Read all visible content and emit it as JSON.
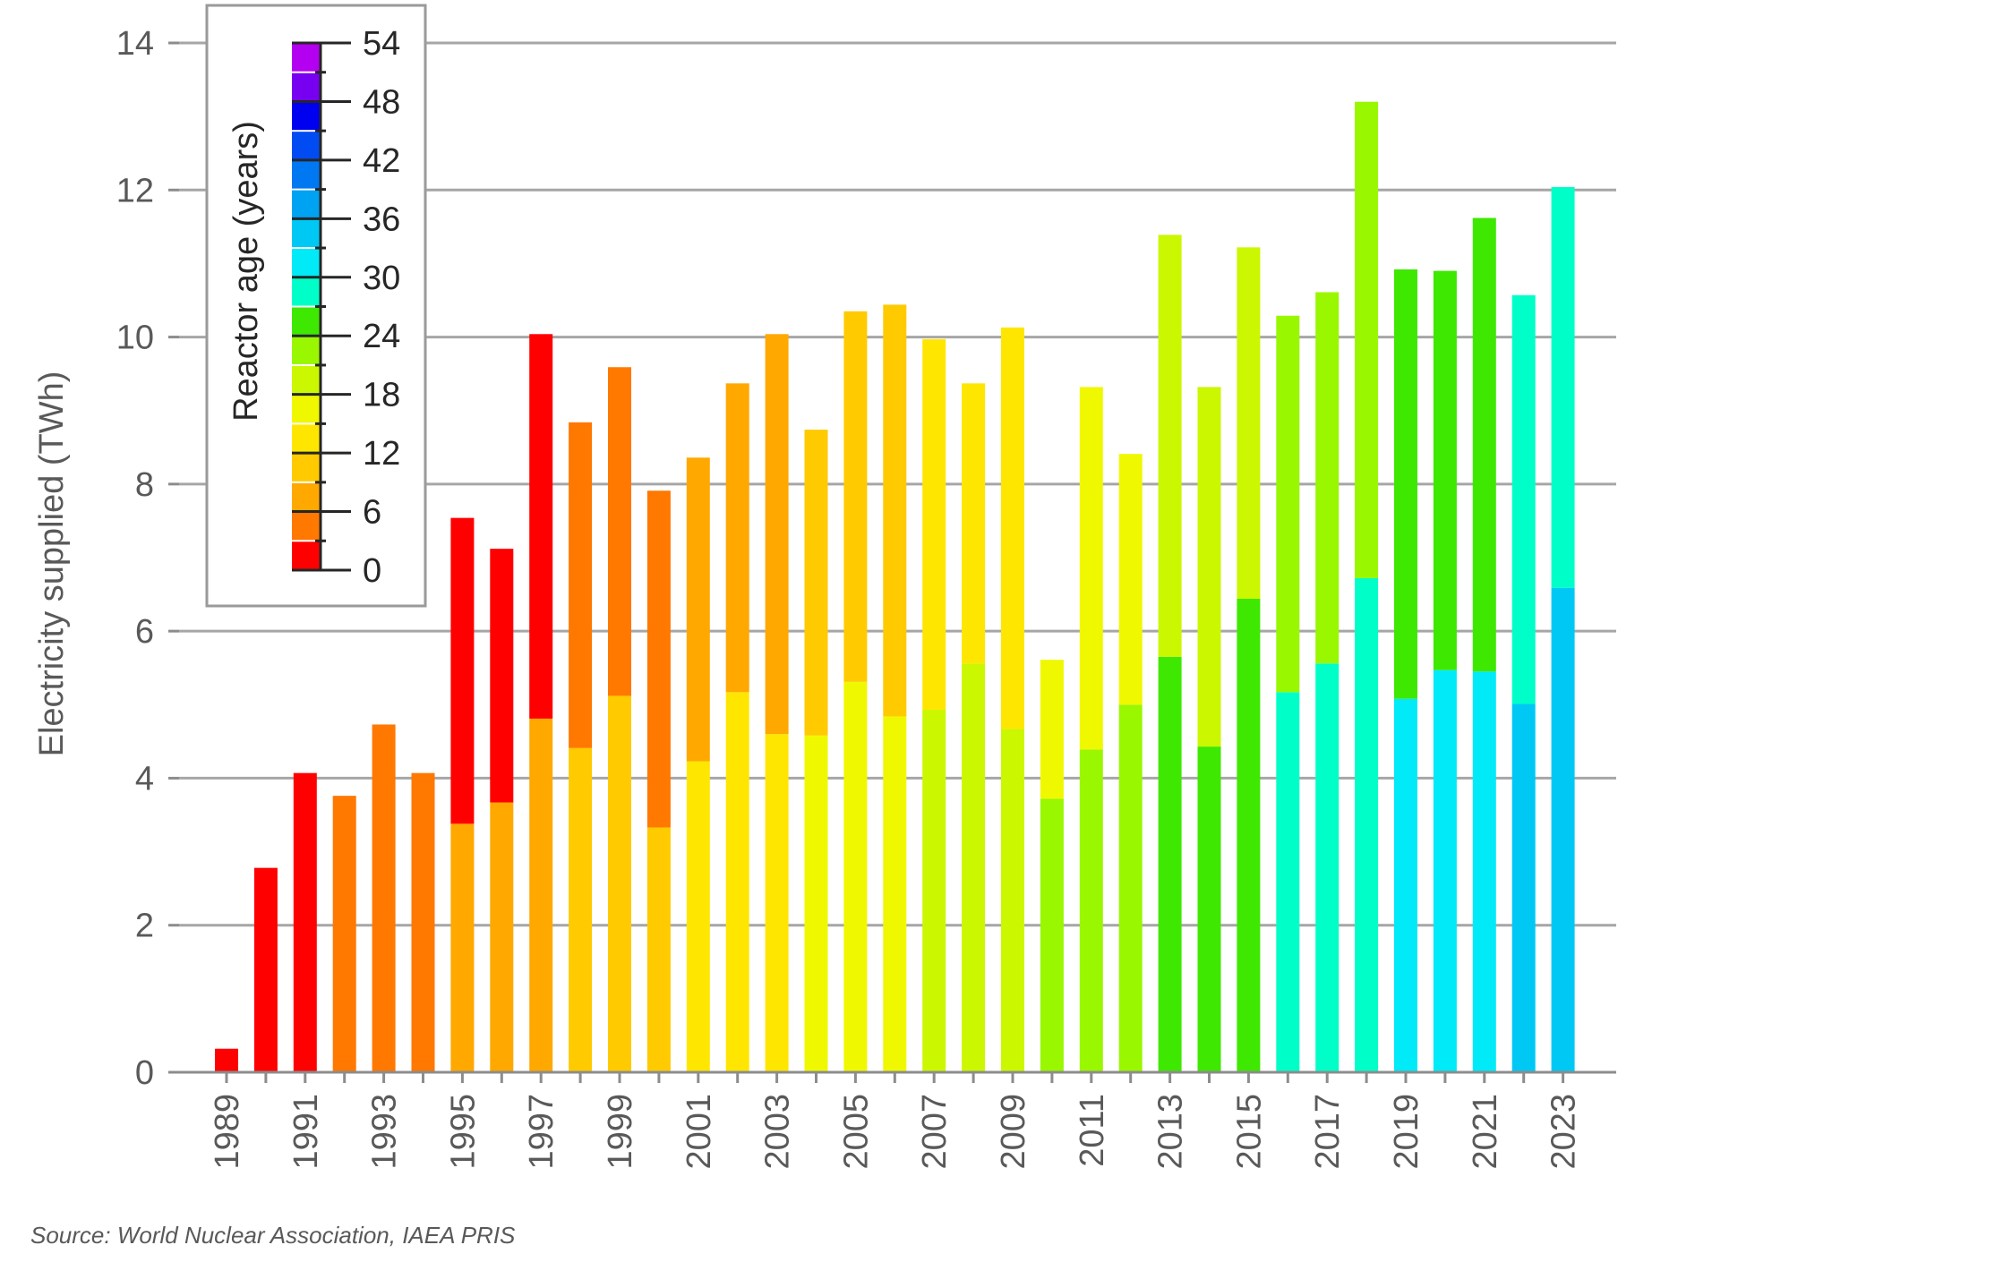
{
  "source": "Source: World Nuclear Association, IAEA PRIS",
  "chart_data": {
    "type": "bar",
    "stacked": true,
    "ylabel": "Electricity supplied (TWh)",
    "ylim": [
      0,
      14
    ],
    "yticks": [
      0,
      2,
      4,
      6,
      8,
      10,
      12,
      14
    ],
    "grid": true,
    "years": [
      1989,
      1990,
      1991,
      1992,
      1993,
      1994,
      1995,
      1996,
      1997,
      1998,
      1999,
      2000,
      2001,
      2002,
      2003,
      2004,
      2005,
      2006,
      2007,
      2008,
      2009,
      2010,
      2011,
      2012,
      2013,
      2014,
      2015,
      2016,
      2017,
      2018,
      2019,
      2020,
      2021,
      2022,
      2023
    ],
    "xtick_labels": [
      "1989",
      "1991",
      "1993",
      "1995",
      "1997",
      "1999",
      "2001",
      "2003",
      "2005",
      "2007",
      "2009",
      "2011",
      "2013",
      "2015",
      "2017",
      "2019",
      "2021",
      "2023"
    ],
    "unit_a_values": [
      0.32,
      2.78,
      4.07,
      3.76,
      4.73,
      4.07,
      3.38,
      3.67,
      4.81,
      4.41,
      5.12,
      3.33,
      4.23,
      5.17,
      4.6,
      4.58,
      5.31,
      4.84,
      4.93,
      5.56,
      4.67,
      3.72,
      4.39,
      5.0,
      5.65,
      4.43,
      6.44,
      5.17,
      5.56,
      6.72,
      5.08,
      5.47,
      5.45,
      5.01,
      6.59
    ],
    "unit_b_values": [
      0,
      0,
      0,
      0,
      0,
      0,
      4.16,
      3.45,
      5.23,
      4.43,
      4.47,
      4.58,
      4.13,
      4.2,
      5.44,
      4.16,
      5.04,
      5.6,
      5.04,
      3.81,
      5.46,
      1.89,
      4.93,
      3.41,
      5.74,
      4.89,
      4.78,
      5.12,
      5.05,
      6.48,
      5.84,
      5.43,
      6.17,
      5.56,
      5.45
    ],
    "unit_a_ages": [
      0,
      1,
      2,
      3,
      4,
      5,
      6,
      7,
      8,
      9,
      10,
      11,
      12,
      13,
      14,
      15,
      16,
      17,
      18,
      19,
      20,
      21,
      22,
      23,
      24,
      25,
      26,
      27,
      28,
      29,
      30,
      31,
      32,
      33,
      34
    ],
    "unit_b_ages": [
      null,
      null,
      null,
      null,
      null,
      null,
      0,
      1,
      2,
      3,
      4,
      5,
      6,
      7,
      8,
      9,
      10,
      11,
      12,
      13,
      14,
      15,
      16,
      17,
      18,
      19,
      20,
      21,
      22,
      23,
      24,
      25,
      26,
      27,
      28
    ],
    "legend": {
      "title": "Reactor age (years)",
      "tick_labels": [
        "54",
        "48",
        "42",
        "36",
        "30",
        "24",
        "18",
        "12",
        "6",
        "0"
      ],
      "bands": [
        {
          "from": 0,
          "color": "#ff0000"
        },
        {
          "from": 3,
          "color": "#ff7800"
        },
        {
          "from": 6,
          "color": "#ffa800"
        },
        {
          "from": 9,
          "color": "#ffca00"
        },
        {
          "from": 12,
          "color": "#ffe600"
        },
        {
          "from": 15,
          "color": "#f0f800"
        },
        {
          "from": 18,
          "color": "#cbf700"
        },
        {
          "from": 21,
          "color": "#99f700"
        },
        {
          "from": 24,
          "color": "#3ee800"
        },
        {
          "from": 27,
          "color": "#00ffc8"
        },
        {
          "from": 30,
          "color": "#00eaf8"
        },
        {
          "from": 33,
          "color": "#00c8f5"
        },
        {
          "from": 36,
          "color": "#00a2f2"
        },
        {
          "from": 39,
          "color": "#0078f2"
        },
        {
          "from": 42,
          "color": "#004cf2"
        },
        {
          "from": 45,
          "color": "#0000f0"
        },
        {
          "from": 48,
          "color": "#7800f0"
        },
        {
          "from": 51,
          "color": "#b400f0"
        }
      ],
      "placement": "top-left"
    }
  }
}
